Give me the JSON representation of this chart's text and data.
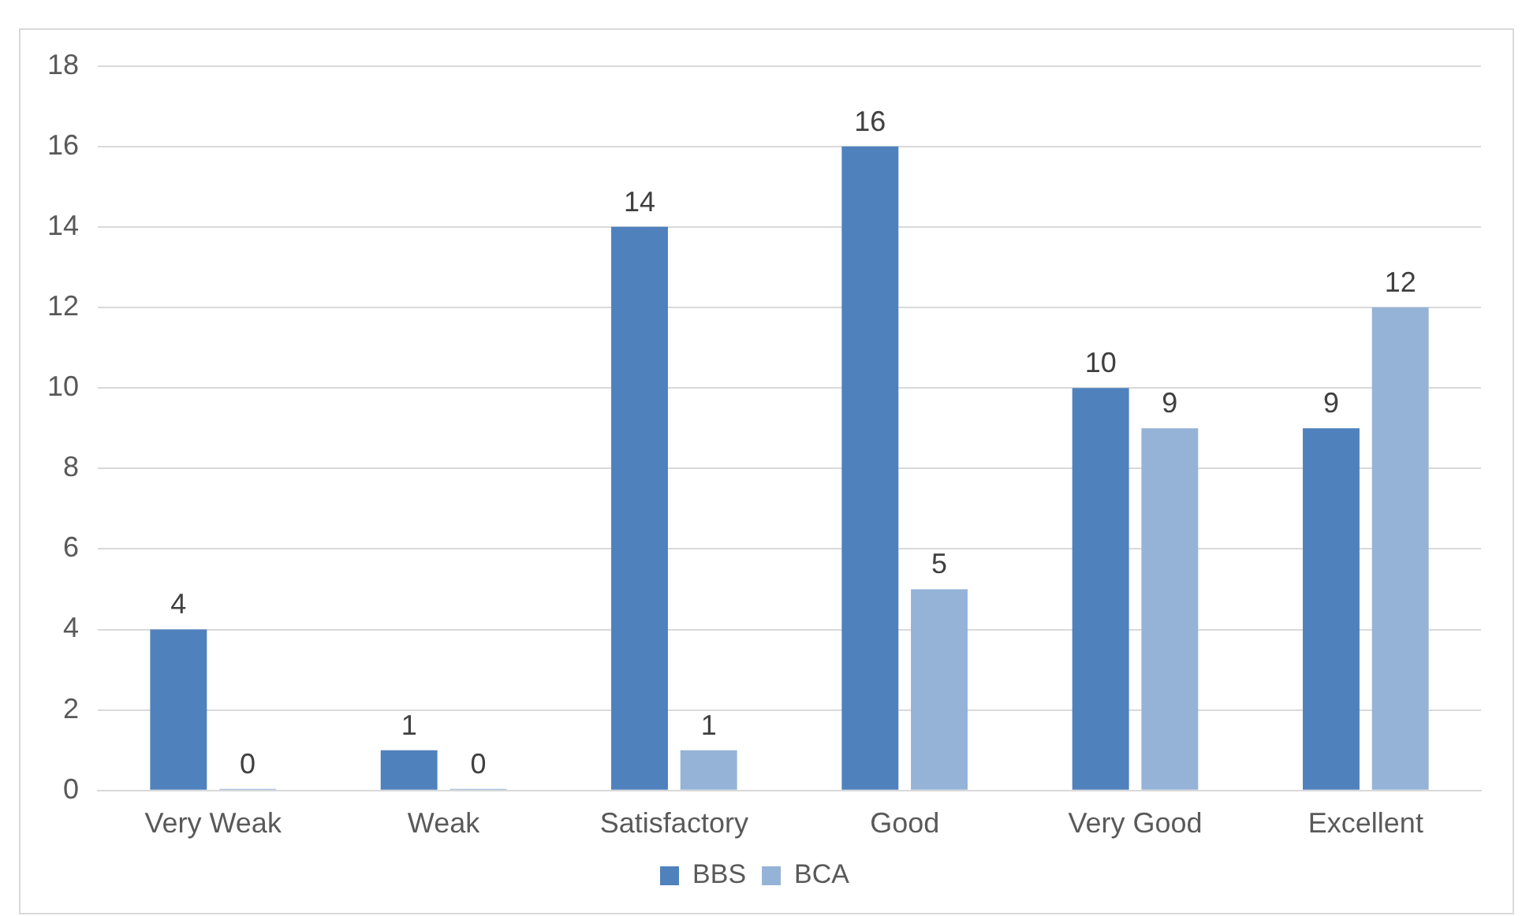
{
  "chart_data": {
    "type": "bar",
    "categories": [
      "Very Weak",
      "Weak",
      "Satisfactory",
      "Good",
      "Very Good",
      "Excellent"
    ],
    "series": [
      {
        "name": "BBS",
        "color": "#4f81bd",
        "values": [
          4,
          1,
          14,
          16,
          10,
          9
        ]
      },
      {
        "name": "BCA",
        "color": "#95b3d7",
        "values": [
          0,
          0,
          1,
          5,
          9,
          12
        ]
      }
    ],
    "ylim": [
      0,
      18
    ],
    "yticks": [
      0,
      2,
      4,
      6,
      8,
      10,
      12,
      14,
      16,
      18
    ],
    "grid": "y",
    "legend": "bottom",
    "data_labels": true
  }
}
